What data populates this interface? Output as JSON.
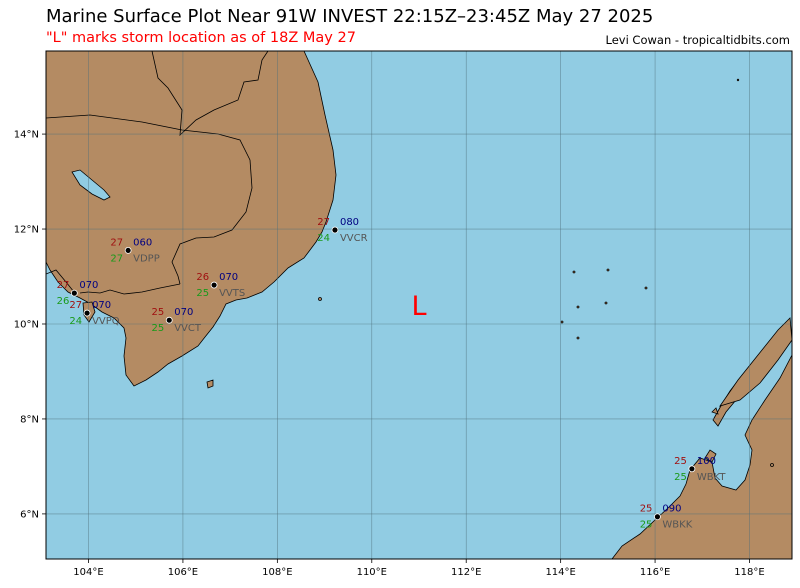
{
  "header": {
    "title": "Marine Surface Plot Near 91W INVEST 22:15Z–23:45Z May 27 2025",
    "subtitle": "\"L\" marks storm location as of 18Z May 27",
    "credit": "Levi Cowan - tropicaltidbits.com"
  },
  "colors": {
    "ocean": "#91cce3",
    "land": "#b48b63",
    "grid": "#4f6f7a",
    "storm_marker": "#ff0000",
    "temperature": "#a01010",
    "dewpoint": "#1a9a1a",
    "wind": "#000080",
    "station_id": "#555555"
  },
  "map": {
    "projection": "plate-carree",
    "lon_range": [
      103.1,
      118.9
    ],
    "lat_range": [
      5.05,
      15.75
    ],
    "lon_ticks": [
      104,
      106,
      108,
      110,
      112,
      114,
      116,
      118
    ],
    "lon_tick_labels": [
      "104°E",
      "106°E",
      "108°E",
      "110°E",
      "112°E",
      "114°E",
      "116°E",
      "118°E"
    ],
    "lat_ticks": [
      6,
      8,
      10,
      12,
      14
    ],
    "lat_tick_labels": [
      "6°N",
      "8°N",
      "10°N",
      "12°N",
      "14°N"
    ],
    "storm": {
      "symbol": "L",
      "lon": 111.0,
      "lat": 10.4
    },
    "stations": [
      {
        "id": "VVCR",
        "lon": 109.22,
        "lat": 11.98,
        "temp": "27",
        "dew": "24",
        "wind": "080"
      },
      {
        "id": "VDPP",
        "lon": 104.84,
        "lat": 11.55,
        "temp": "27",
        "dew": "27",
        "wind": "060"
      },
      {
        "id": "VVTS",
        "lon": 106.66,
        "lat": 10.82,
        "temp": "26",
        "dew": "25",
        "wind": "070"
      },
      {
        "id": "VVCT",
        "lon": 105.71,
        "lat": 10.08,
        "temp": "25",
        "dew": "25",
        "wind": "070"
      },
      {
        "id": "VVPQ",
        "lon": 103.97,
        "lat": 10.23,
        "temp": "27",
        "dew": "24",
        "wind": "070"
      },
      {
        "id": "",
        "lon": 103.7,
        "lat": 10.65,
        "temp": "27",
        "dew": "26",
        "wind": "070"
      },
      {
        "id": "WBKT",
        "lon": 116.78,
        "lat": 6.95,
        "temp": "25",
        "dew": "25",
        "wind": "100"
      },
      {
        "id": "WBKK",
        "lon": 116.05,
        "lat": 5.94,
        "temp": "25",
        "dew": "25",
        "wind": "090"
      }
    ]
  }
}
